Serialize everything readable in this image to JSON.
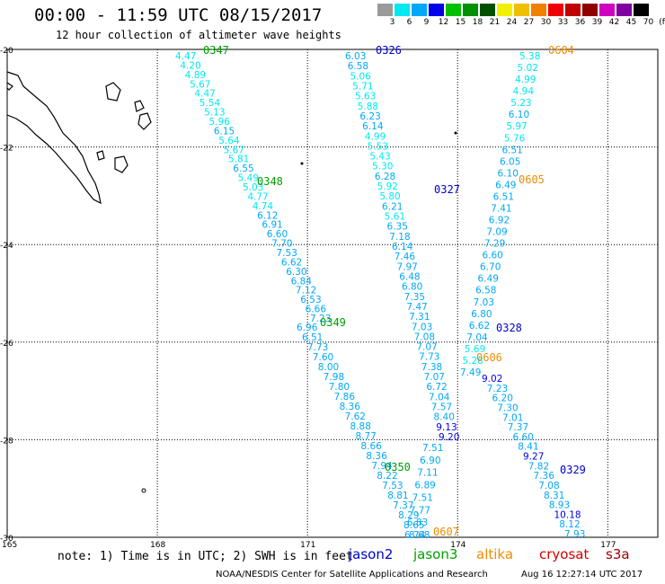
{
  "header": {
    "title": "00:00 - 11:59 UTC 08/15/2017",
    "subtitle": "12 hour collection of altimeter wave heights"
  },
  "color_scale": {
    "labels": [
      "3",
      "6",
      "9",
      "12",
      "15",
      "18",
      "21",
      "24",
      "27",
      "30",
      "33",
      "36",
      "39",
      "42",
      "45",
      "70"
    ],
    "unit": "(ft)",
    "colors": [
      "#9a9a9a",
      "#00e8f0",
      "#00a8f8",
      "#0000e8",
      "#00c000",
      "#009000",
      "#005000",
      "#f0f000",
      "#f0c000",
      "#f08000",
      "#f00000",
      "#c00000",
      "#900000",
      "#d000c0",
      "#8000a0",
      "#000000"
    ]
  },
  "axes": {
    "lon_labels": [
      "165",
      "168",
      "171",
      "174",
      "177"
    ],
    "lat_labels": [
      "-20",
      "-22",
      "-24",
      "-26",
      "-28",
      "-30"
    ]
  },
  "tracks": [
    {
      "id": "0347",
      "sat": "jason3",
      "color": "#00a000",
      "values": [
        "4.47",
        "4.20",
        "4.89",
        "5.67",
        "4.47",
        "5.54",
        "5.13",
        "5.96",
        "6.15",
        "5.64",
        "5.67",
        "5.81",
        "6.55",
        "5.49",
        "5.03",
        "4.77",
        "4.74",
        "6.12",
        "6.91",
        "6.60",
        "7.70",
        "7.53",
        "6.62",
        "6.30",
        "6.84",
        "7.12",
        "6.53",
        "6.66",
        "7.23"
      ]
    },
    {
      "id": "0348",
      "sat": "jason3",
      "color": "#00a000",
      "values": []
    },
    {
      "id": "0349",
      "sat": "jason3",
      "color": "#00a000",
      "values": [
        "6.96",
        "6.51",
        "7.73",
        "7.60",
        "8.00",
        "7.98",
        "7.80",
        "7.86",
        "8.36",
        "7.62",
        "8.88",
        "8.77",
        "8.66",
        "8.36",
        "7.94",
        "8.22",
        "7.53",
        "8.81",
        "7.37",
        "8.29",
        "8.65",
        "8.68"
      ]
    },
    {
      "id": "0350",
      "sat": "jason3",
      "color": "#00a000",
      "values": [
        "7.51",
        "6.90",
        "7.11",
        "6.89",
        "7.51",
        "7.77",
        "6.83",
        "6.74"
      ]
    },
    {
      "id": "0326",
      "sat": "jason2",
      "color": "#0000c8",
      "values": [
        "6.03",
        "6.58",
        "5.06",
        "5.71",
        "5.63",
        "5.88",
        "6.23",
        "6.14",
        "4.99",
        "5.53",
        "5.43",
        "5.30",
        "6.28",
        "5.92",
        "5.80",
        "6.21",
        "5.61",
        "6.35",
        "7.18",
        "6.14",
        "7.46",
        "7.97",
        "6.48",
        "6.80",
        "7.35",
        "7.47",
        "7.31",
        "7.03",
        "7.08",
        "7.07",
        "7.73",
        "7.38",
        "7.07",
        "6.72",
        "7.04",
        "7.57",
        "8.40",
        "9.13",
        "9.20"
      ]
    },
    {
      "id": "0327",
      "sat": "jason2",
      "color": "#0000c8",
      "values": []
    },
    {
      "id": "0328",
      "sat": "jason2",
      "color": "#0000c8",
      "values": [
        "9.02",
        "7.23",
        "6.20",
        "7.30",
        "7.01",
        "7.37",
        "6.60",
        "8.41",
        "9.27",
        "7.82",
        "7.36",
        "7.08",
        "8.31",
        "8.93",
        "10.18",
        "8.12",
        "7.93"
      ]
    },
    {
      "id": "0329",
      "sat": "jason2",
      "color": "#0000c8",
      "values": []
    },
    {
      "id": "0604",
      "sat": "altika",
      "color": "#f08c00",
      "values": [
        "5.38",
        "5.02",
        "4.99",
        "4.94",
        "5.23",
        "6.10",
        "5.97",
        "5.76",
        "6.51",
        "6.05",
        "6.10",
        "6.49",
        "6.51",
        "7.41",
        "6.92",
        "7.09",
        "7.29",
        "6.60",
        "6.70",
        "6.49",
        "6.58",
        "7.03",
        "6.80",
        "6.62",
        "7.04",
        "5.69",
        "5.28",
        "7.49"
      ]
    },
    {
      "id": "0605",
      "sat": "altika",
      "color": "#f08c00",
      "values": []
    },
    {
      "id": "0606",
      "sat": "altika",
      "color": "#f08c00",
      "values": []
    },
    {
      "id": "0607",
      "sat": "altika",
      "color": "#f08c00",
      "values": []
    }
  ],
  "footer": {
    "note": "note: 1) Time is in UTC; 2) SWH is in feet",
    "satellites": [
      {
        "name": "jason2",
        "color": "#0000c8"
      },
      {
        "name": "jason3",
        "color": "#00a000"
      },
      {
        "name": "altika",
        "color": "#f08c00"
      },
      {
        "name": "cryosat",
        "color": "#d00000"
      },
      {
        "name": "s3a",
        "color": "#a00000"
      }
    ],
    "credit": "NOAA/NESDIS Center for Satellite Applications and Research",
    "timestamp": "Aug 16 12:27:14 UTC 2017"
  }
}
